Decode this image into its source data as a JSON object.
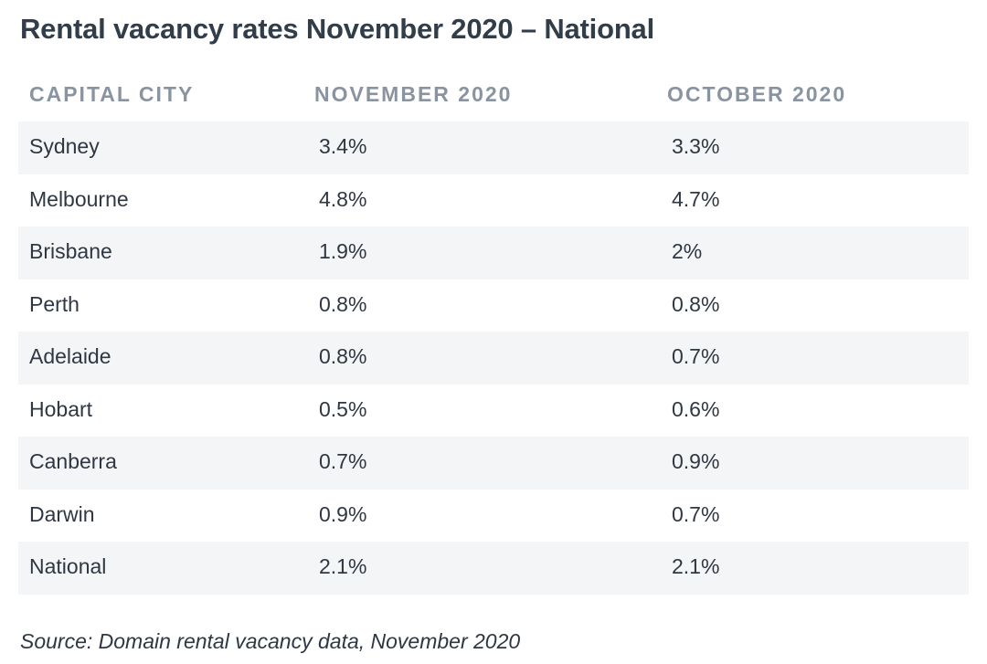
{
  "title": "Rental vacancy rates November 2020 – National",
  "table": {
    "headers": [
      "CAPITAL CITY",
      "NOVEMBER 2020",
      "OCTOBER 2020"
    ],
    "rows": [
      {
        "city": "Sydney",
        "nov": "3.4%",
        "oct": "3.3%"
      },
      {
        "city": "Melbourne",
        "nov": "4.8%",
        "oct": "4.7%"
      },
      {
        "city": "Brisbane",
        "nov": "1.9%",
        "oct": "2%"
      },
      {
        "city": "Perth",
        "nov": "0.8%",
        "oct": "0.8%"
      },
      {
        "city": "Adelaide",
        "nov": "0.8%",
        "oct": "0.7%"
      },
      {
        "city": "Hobart",
        "nov": "0.5%",
        "oct": "0.6%"
      },
      {
        "city": "Canberra",
        "nov": "0.7%",
        "oct": "0.9%"
      },
      {
        "city": "Darwin",
        "nov": "0.9%",
        "oct": "0.7%"
      },
      {
        "city": "National",
        "nov": "2.1%",
        "oct": "2.1%"
      }
    ]
  },
  "source": "Source: Domain rental vacancy data, November 2020",
  "colors": {
    "title": "#323d4a",
    "header_text": "#8a93a0",
    "row_shade": "#f3f5f7",
    "body_text": "#2f3742"
  }
}
